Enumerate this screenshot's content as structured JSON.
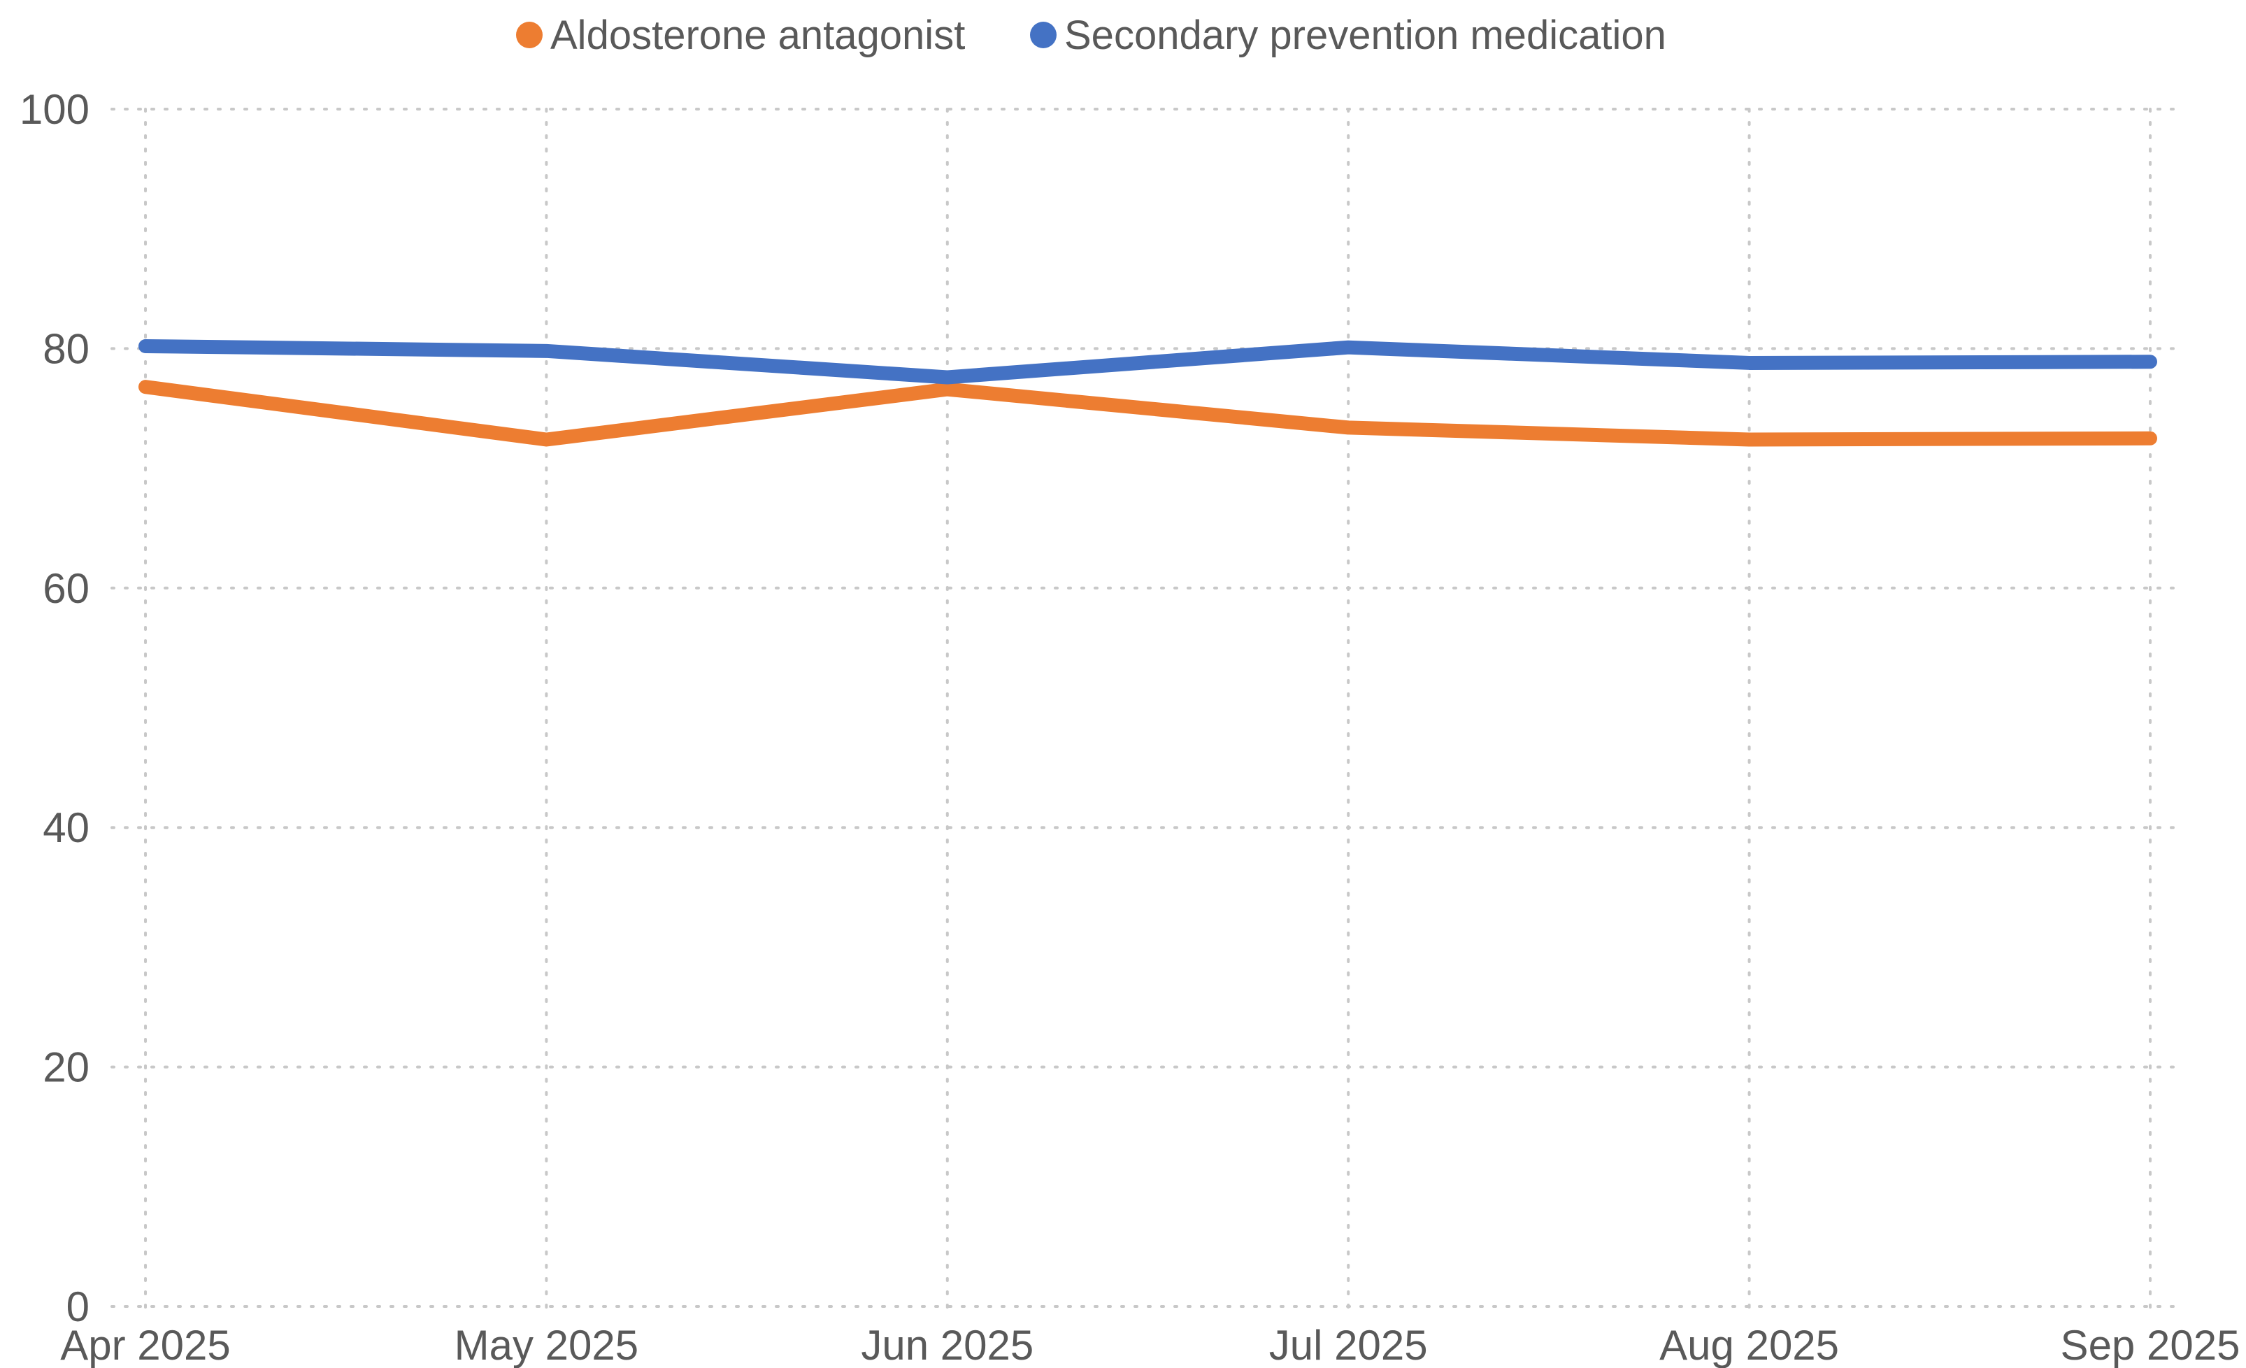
{
  "chart_data": {
    "type": "line",
    "title": "",
    "xlabel": "",
    "ylabel": "",
    "categories": [
      "Apr 2025",
      "May 2025",
      "Jun 2025",
      "Jul 2025",
      "Aug 2025",
      "Sep 2025"
    ],
    "ylim": [
      0,
      100
    ],
    "yticks": [
      "0",
      "20",
      "40",
      "60",
      "80",
      "100"
    ],
    "grid": true,
    "legend_position": "top-center",
    "series": [
      {
        "name": "Aldosterone antagonist",
        "color": "#ed7d31",
        "values": [
          76.8,
          72.4,
          76.6,
          73.4,
          72.4,
          72.5
        ]
      },
      {
        "name": "Secondary prevention medication",
        "color": "#4472c4",
        "values": [
          80.2,
          79.8,
          77.6,
          80.1,
          78.8,
          78.9
        ]
      }
    ]
  }
}
